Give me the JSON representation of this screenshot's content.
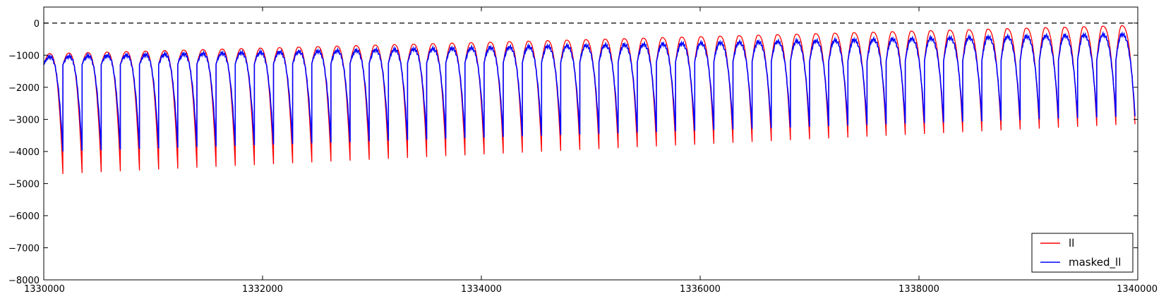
{
  "chart_data": {
    "type": "line",
    "title": "",
    "xlabel": "",
    "ylabel": "",
    "xlim": [
      1330000,
      1340000
    ],
    "ylim": [
      -8000,
      500
    ],
    "xticks": [
      1330000,
      1332000,
      1334000,
      1336000,
      1338000,
      1340000
    ],
    "xtick_labels": [
      "1330000",
      "1332000",
      "1334000",
      "1336000",
      "1338000",
      "1340000"
    ],
    "yticks": [
      0,
      -1000,
      -2000,
      -3000,
      -4000,
      -5000,
      -6000,
      -7000,
      -8000
    ],
    "ytick_labels": [
      "0",
      "−1000",
      "−2000",
      "−3000",
      "−4000",
      "−5000",
      "−6000",
      "−7000",
      "−8000"
    ],
    "grid": false,
    "legend_position": "lower-right",
    "reference_line": {
      "y": 0,
      "style": "dashed",
      "color": "#000000"
    },
    "cycles": {
      "count": 57,
      "x_start": 1330000,
      "period": 175,
      "ll_trough": [
        -4700,
        -3150
      ],
      "ll_peak": [
        -950,
        -80
      ],
      "masked_ll_trough": [
        -4000,
        -2900
      ],
      "masked_ll_peak": [
        -1050,
        -350
      ]
    },
    "series": [
      {
        "name": "ll",
        "color": "#ff0000"
      },
      {
        "name": "masked_ll",
        "color": "#0000ff"
      }
    ]
  }
}
